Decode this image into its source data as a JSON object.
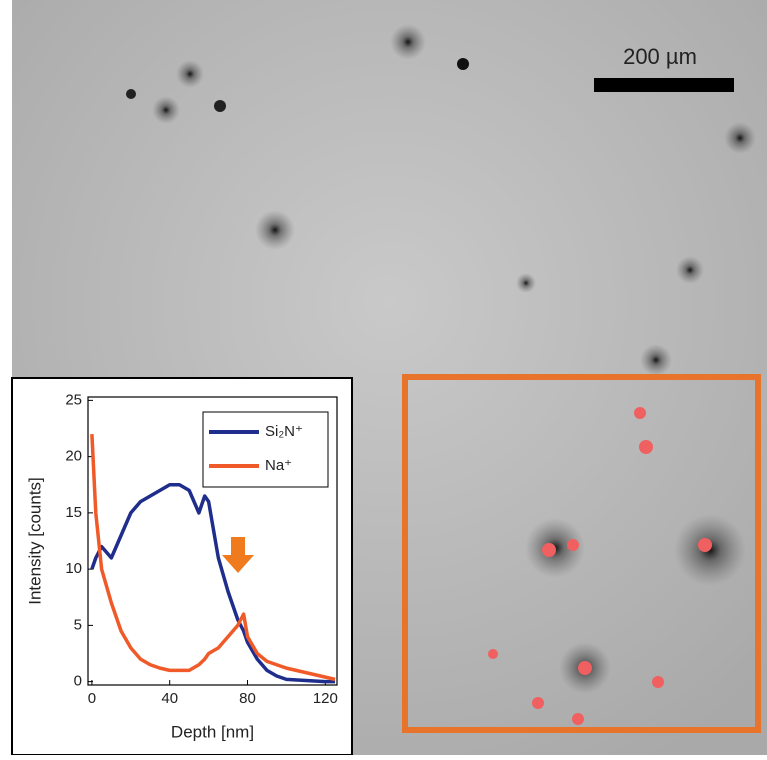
{
  "scale_bar": "200 µm",
  "chart_data": {
    "type": "line",
    "xlabel": "Depth [nm]",
    "ylabel": "Intensity [counts]",
    "x": [
      0,
      2,
      5,
      10,
      15,
      20,
      25,
      30,
      35,
      40,
      45,
      50,
      55,
      58,
      60,
      65,
      70,
      75,
      78,
      80,
      85,
      90,
      95,
      100,
      110,
      120,
      125
    ],
    "series": [
      {
        "name": "Si₂N⁺",
        "color": "#1f2d8c",
        "values": [
          10,
          11,
          12,
          11,
          13,
          15,
          16,
          16.5,
          17,
          17.5,
          17.5,
          17,
          15,
          16.5,
          16,
          11,
          8,
          5.5,
          4.5,
          3.5,
          2,
          1,
          0.5,
          0.2,
          0.1,
          0,
          0
        ]
      },
      {
        "name": "Na⁺",
        "color": "#f05a28",
        "values": [
          22,
          15,
          10,
          7,
          4.5,
          3,
          2,
          1.5,
          1.2,
          1,
          1,
          1,
          1.5,
          2,
          2.5,
          3,
          4,
          5,
          6,
          4,
          2.5,
          1.8,
          1.5,
          1.2,
          0.8,
          0.4,
          0.2
        ]
      }
    ],
    "xlim": [
      -2,
      126
    ],
    "ylim": [
      -0.3,
      25.3
    ],
    "xticks": [
      0,
      40,
      80,
      120
    ],
    "yticks": [
      0,
      5,
      10,
      15,
      20,
      25
    ],
    "legend": "upper right"
  }
}
